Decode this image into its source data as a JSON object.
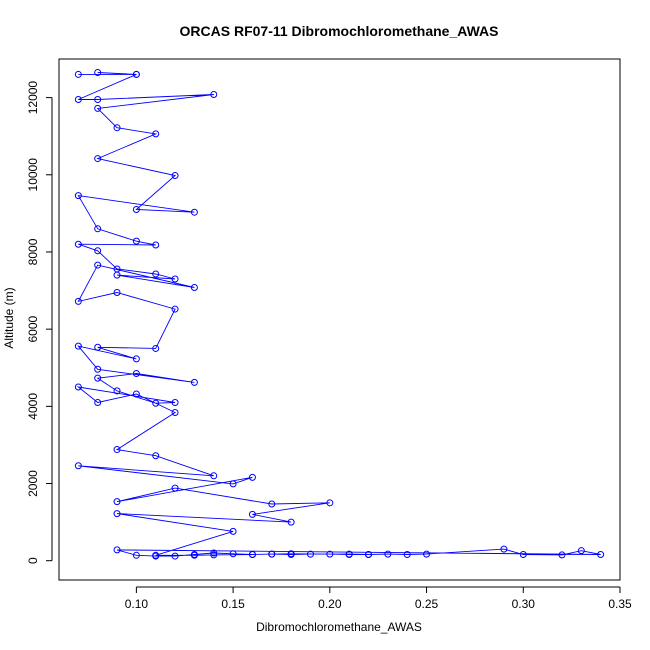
{
  "chart_data": {
    "type": "line",
    "title": "ORCAS RF07-11 Dibromochloromethane_AWAS",
    "xlabel": "Dibromochloromethane_AWAS",
    "ylabel": "Altitude (m)",
    "xlim": [
      0.06,
      0.35
    ],
    "ylim": [
      -500,
      13000
    ],
    "xticks": [
      0.1,
      0.15,
      0.2,
      0.25,
      0.3,
      0.35
    ],
    "xtick_labels": [
      "0.10",
      "0.15",
      "0.20",
      "0.25",
      "0.30",
      "0.35"
    ],
    "yticks": [
      0,
      2000,
      4000,
      6000,
      8000,
      10000,
      12000
    ],
    "ytick_labels": [
      "0",
      "2000",
      "4000",
      "6000",
      "8000",
      "10000",
      "12000"
    ],
    "grid": false,
    "series": [
      {
        "color": "#0000ff",
        "marker": "open-circle",
        "x": [
          0.07,
          0.1,
          0.08,
          0.1,
          0.07,
          0.08,
          0.14,
          0.08,
          0.09,
          0.11,
          0.08,
          0.12,
          0.1,
          0.13,
          0.07,
          0.08,
          0.1,
          0.11,
          0.07,
          0.08,
          0.09,
          0.11,
          0.12,
          0.09,
          0.13,
          0.08,
          0.07,
          0.09,
          0.12,
          0.11,
          0.08,
          0.1,
          0.07,
          0.08,
          0.13,
          0.1,
          0.08,
          0.09,
          0.11,
          0.12,
          0.07,
          0.08,
          0.1,
          0.12,
          0.09,
          0.11,
          0.14,
          0.07,
          0.15,
          0.16,
          0.09,
          0.12,
          0.17,
          0.2,
          0.16,
          0.18,
          0.09,
          0.15,
          0.11,
          0.13,
          0.14,
          0.16,
          0.17,
          0.18,
          0.2,
          0.21,
          0.22,
          0.23,
          0.24,
          0.25,
          0.29,
          0.3,
          0.32,
          0.33,
          0.34,
          0.09,
          0.1,
          0.11,
          0.12,
          0.13,
          0.14,
          0.15,
          0.16,
          0.17,
          0.18,
          0.19,
          0.21,
          0.22
        ],
        "y": [
          12600,
          12600,
          12650,
          12600,
          11950,
          11950,
          12080,
          11720,
          11220,
          11060,
          10420,
          9980,
          9100,
          9030,
          9460,
          8600,
          8280,
          8180,
          8200,
          8030,
          7560,
          7430,
          7300,
          7400,
          7080,
          7660,
          6720,
          6950,
          6520,
          5500,
          5530,
          5230,
          5560,
          4960,
          4620,
          4850,
          4730,
          4400,
          4080,
          4100,
          4500,
          4100,
          4320,
          3840,
          2880,
          2720,
          2200,
          2460,
          1990,
          2160,
          1530,
          1880,
          1470,
          1500,
          1200,
          1000,
          1220,
          760,
          140,
          140,
          150,
          160,
          170,
          180,
          170,
          160,
          160,
          170,
          160,
          170,
          300,
          160,
          150,
          260,
          160,
          280,
          140,
          120,
          120,
          160,
          200,
          180,
          160,
          170,
          160,
          170,
          170,
          160
        ]
      }
    ]
  }
}
